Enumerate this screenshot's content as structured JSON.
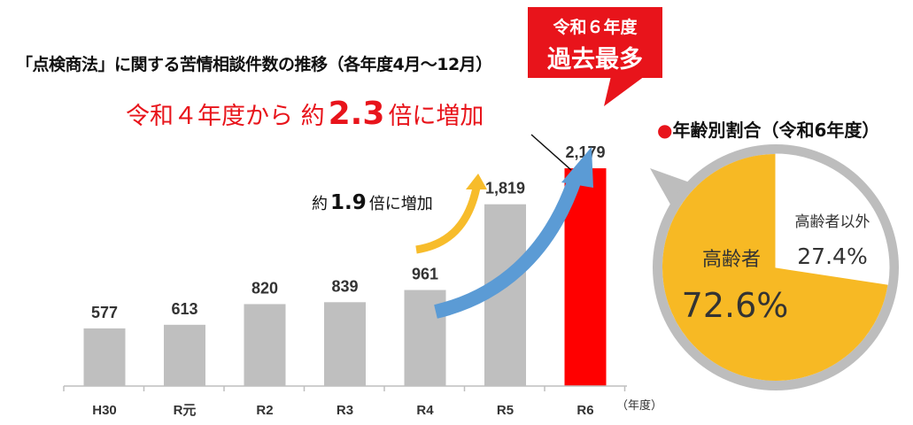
{
  "title": "「点検商法」に関する苦情相談件数の推移（各年度4月～12月）",
  "badge": {
    "line1": "令和６年度",
    "line2": "過去最多"
  },
  "headline": {
    "pre": "令和４年度から 約",
    "value": "2.3",
    "post": "倍に増加"
  },
  "sub_annotation": {
    "pre": "約",
    "value": "1.9",
    "post": "倍に増加"
  },
  "x_unit": "（年度）",
  "chart_data": [
    {
      "type": "bar",
      "title": "「点検商法」に関する苦情相談件数の推移（各年度4月～12月）",
      "categories": [
        "H30",
        "R元",
        "R2",
        "R3",
        "R4",
        "R5",
        "R6"
      ],
      "values": [
        577,
        613,
        820,
        839,
        961,
        1819,
        2179
      ],
      "value_labels": [
        "577",
        "613",
        "820",
        "839",
        "961",
        "1,819",
        "2,179"
      ],
      "highlight_index": 6,
      "colors": {
        "default": "#bfbfbf",
        "highlight": "#ff0000"
      },
      "xlabel": "（年度）",
      "ylabel": "",
      "ylim": [
        0,
        2500
      ],
      "grid": false
    },
    {
      "type": "pie",
      "title": "●年齢別割合（令和6年度）",
      "labels": [
        "高齢者",
        "高齢者以外"
      ],
      "values": [
        72.6,
        27.4
      ],
      "value_labels": [
        "72.6%",
        "27.4%"
      ],
      "colors": [
        "#f7b924",
        "#ffffff"
      ]
    }
  ],
  "age_title": {
    "dot": "●",
    "text": "年齢別割合（令和6年度）"
  },
  "colors": {
    "accent_red": "#e8141b",
    "arrow_blue": "#5b9bd5",
    "arrow_yellow": "#f7bc2b",
    "bar_gray": "#bfbfbf",
    "pie_frame": "#bdbdbd"
  }
}
